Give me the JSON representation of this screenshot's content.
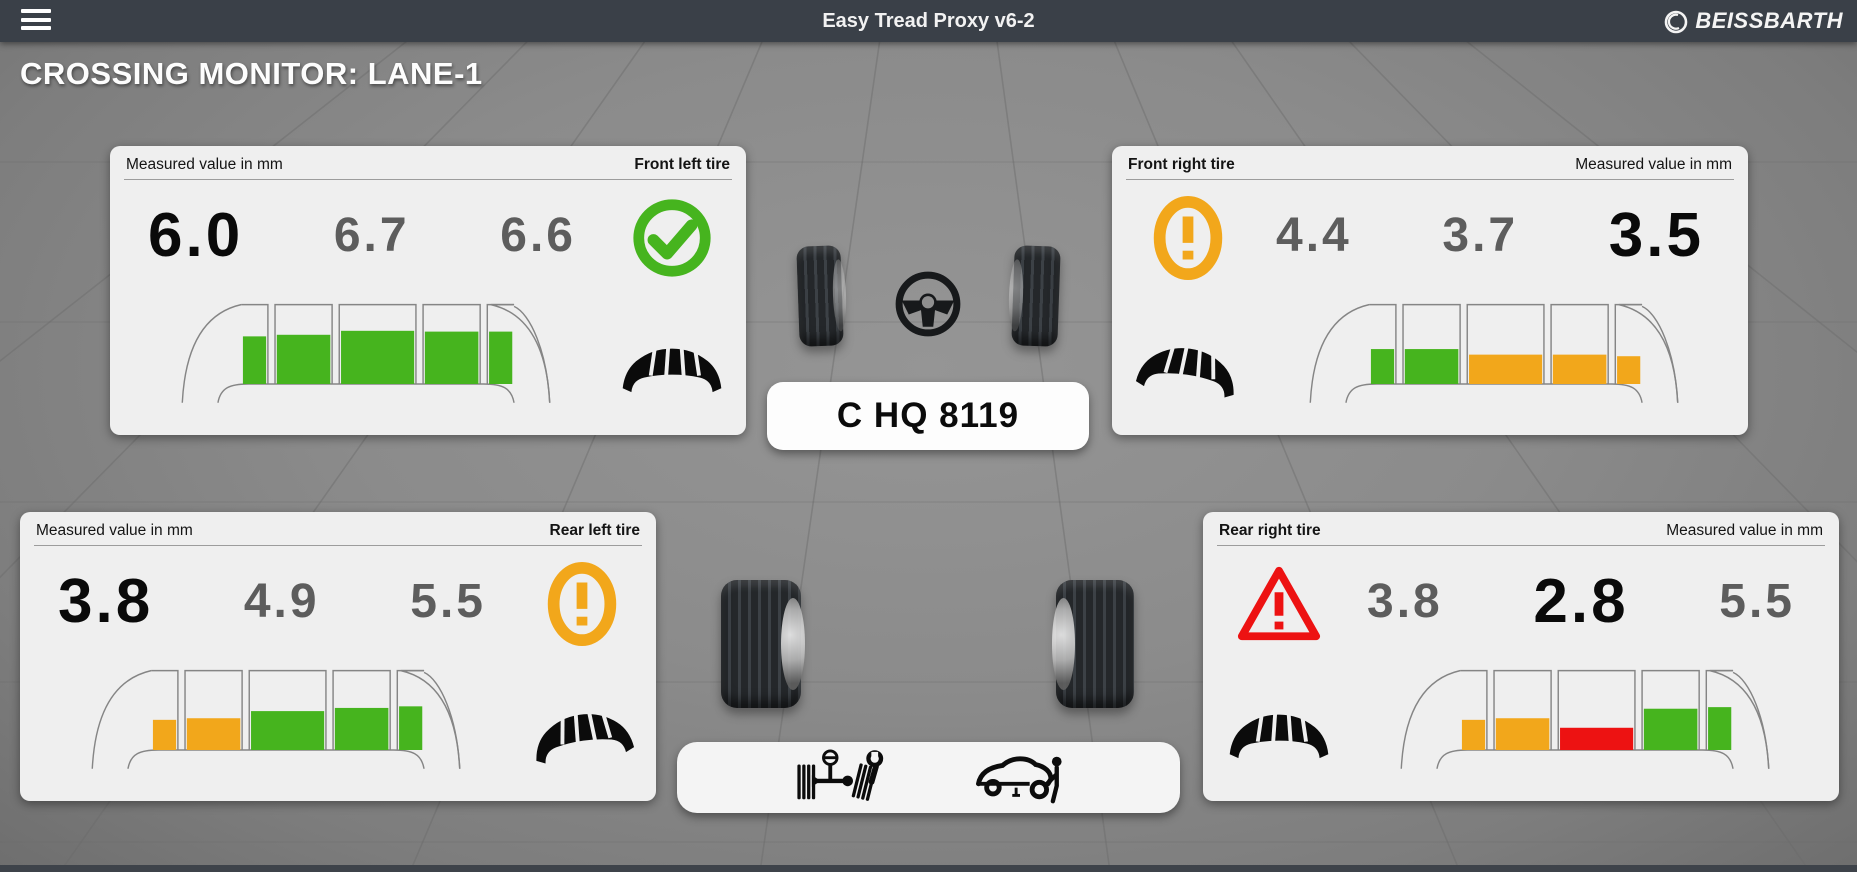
{
  "app": {
    "title": "Easy Tread Proxy v6-2",
    "brand": "BEISSBARTH"
  },
  "page": {
    "title": "CROSSING MONITOR: LANE-1"
  },
  "vehicle": {
    "license_plate": "C HQ 8119"
  },
  "colors": {
    "green": "#46b41e",
    "orange": "#f2a71b",
    "red": "#ed1212",
    "topbar": "#3a4048",
    "panel_bg": "#efefef",
    "value_gray": "#5d5d5d",
    "value_min_black": "#0a0a0a"
  },
  "icons": {
    "menu": "hamburger-icon",
    "brand_emblem": "beissbarth-emblem-icon",
    "status_ok": "green-check-circle-icon",
    "status_warning": "orange-exclamation-circle-icon",
    "status_danger": "red-warning-triangle-icon",
    "tread": "tire-tread-cross-section-icon",
    "service_left": "wheel-alignment-icon",
    "service_right": "car-service-icon",
    "steering": "steering-wheel-icon"
  },
  "panels": {
    "front_left": {
      "header_left": "Measured value in mm",
      "header_right": "Front left tire",
      "values": [
        "6.0",
        "6.7",
        "6.6"
      ],
      "min_index": 0,
      "status": "ok",
      "tread_wear": "even",
      "bars": [
        {
          "h": 0.6,
          "c": "green"
        },
        {
          "h": 0.62,
          "c": "green"
        },
        {
          "h": 0.67,
          "c": "green"
        },
        {
          "h": 0.66,
          "c": "green"
        },
        {
          "h": 0.66,
          "c": "green"
        }
      ]
    },
    "front_right": {
      "header_left": "Front right tire",
      "header_right": "Measured value in mm",
      "values": [
        "4.4",
        "3.7",
        "3.5"
      ],
      "min_index": 2,
      "status": "warning",
      "tread_wear": "right",
      "bars": [
        {
          "h": 0.44,
          "c": "green"
        },
        {
          "h": 0.44,
          "c": "green"
        },
        {
          "h": 0.37,
          "c": "orange"
        },
        {
          "h": 0.37,
          "c": "orange"
        },
        {
          "h": 0.35,
          "c": "orange"
        }
      ]
    },
    "rear_left": {
      "header_left": "Measured value in mm",
      "header_right": "Rear left tire",
      "values": [
        "3.8",
        "4.9",
        "5.5"
      ],
      "min_index": 0,
      "status": "warning",
      "tread_wear": "left",
      "bars": [
        {
          "h": 0.38,
          "c": "orange"
        },
        {
          "h": 0.4,
          "c": "orange"
        },
        {
          "h": 0.49,
          "c": "green"
        },
        {
          "h": 0.53,
          "c": "green"
        },
        {
          "h": 0.55,
          "c": "green"
        }
      ]
    },
    "rear_right": {
      "header_left": "Rear right tire",
      "header_right": "Measured value in mm",
      "values": [
        "3.8",
        "2.8",
        "5.5"
      ],
      "min_index": 1,
      "status": "danger",
      "tread_wear": "even",
      "bars": [
        {
          "h": 0.38,
          "c": "orange"
        },
        {
          "h": 0.4,
          "c": "orange"
        },
        {
          "h": 0.28,
          "c": "red"
        },
        {
          "h": 0.52,
          "c": "green"
        },
        {
          "h": 0.54,
          "c": "green"
        }
      ]
    }
  }
}
